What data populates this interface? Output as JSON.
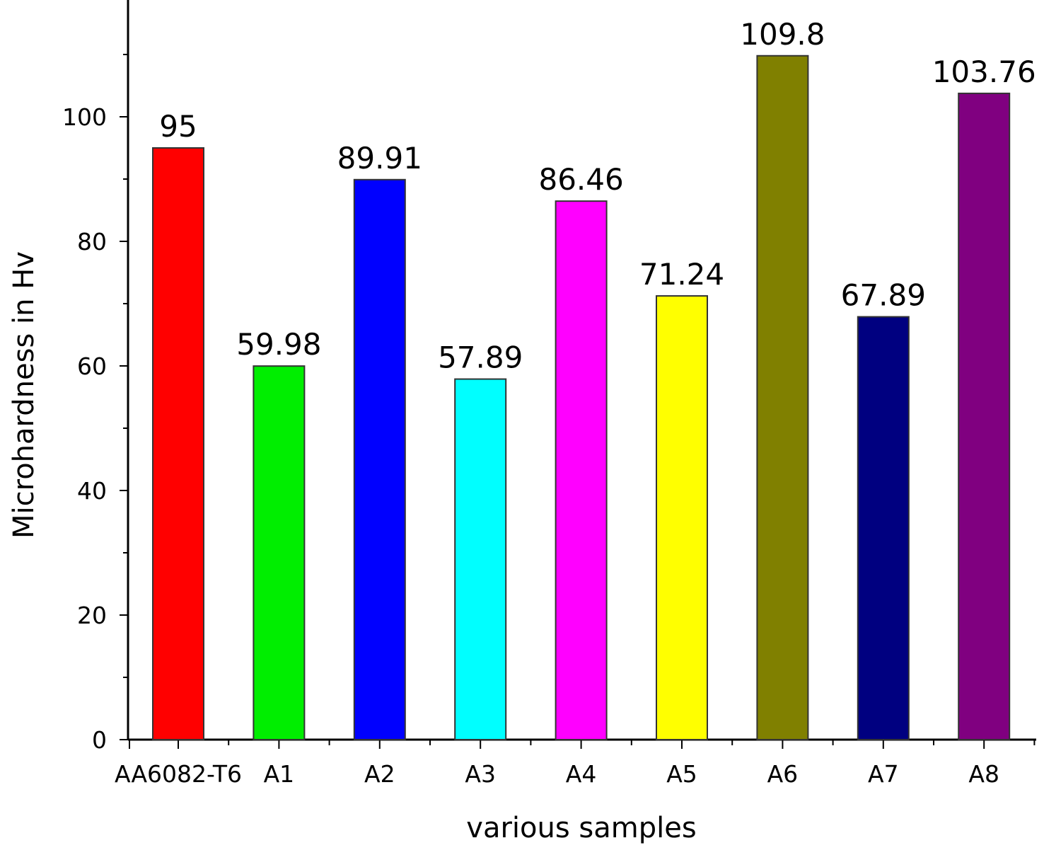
{
  "chart_data": {
    "type": "bar",
    "categories": [
      "AA6082-T6",
      "A1",
      "A2",
      "A3",
      "A4",
      "A5",
      "A6",
      "A7",
      "A8"
    ],
    "values": [
      95,
      59.98,
      89.91,
      57.89,
      86.46,
      71.24,
      109.8,
      67.89,
      103.76
    ],
    "data_labels": [
      "95",
      "59.98",
      "89.91",
      "57.89",
      "86.46",
      "71.24",
      "109.8",
      "67.89",
      "103.76"
    ],
    "colors": [
      "#ff0000",
      "#00ee00",
      "#0000ff",
      "#00ffff",
      "#ff00ff",
      "#ffff00",
      "#808000",
      "#000080",
      "#800080"
    ],
    "xlabel": "various samples",
    "ylabel": "Microhardness in Hv",
    "yticks": [
      0,
      20,
      40,
      60,
      80,
      100
    ],
    "ylim": [
      0,
      118
    ],
    "grid": false,
    "legend": false
  }
}
